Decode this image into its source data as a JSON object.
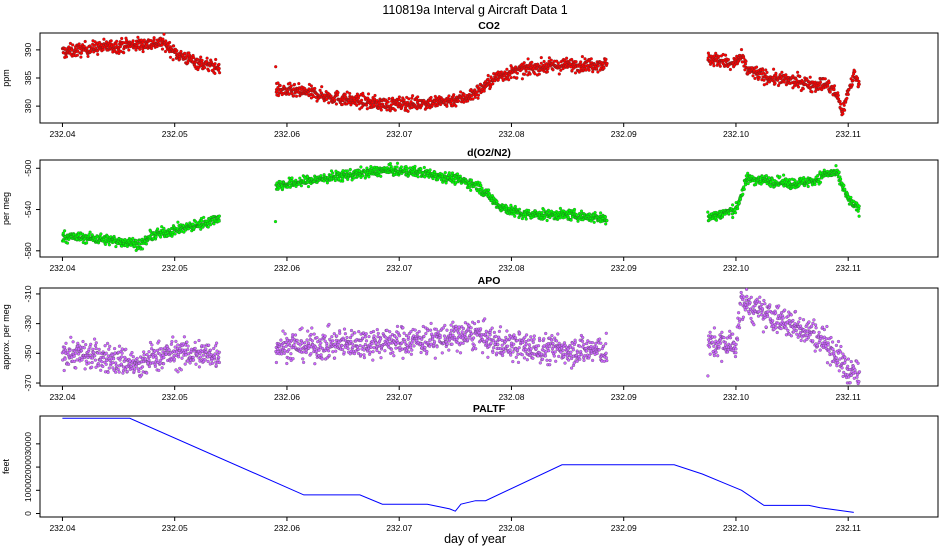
{
  "figure": {
    "title": "110819a   Interval g Aircraft Data 1",
    "xlabel": "day of year"
  },
  "chart_data": [
    {
      "type": "scatter",
      "title": "CO2",
      "ylabel": "ppm",
      "color": "#ff0000",
      "xlim": [
        232.038,
        232.118
      ],
      "ylim": [
        377,
        393
      ],
      "xticks": [
        "232.04",
        "232.05",
        "232.06",
        "232.07",
        "232.08",
        "232.09",
        "232.10",
        "232.11"
      ],
      "yticks": [
        380,
        385,
        390
      ],
      "anchors": [
        [
          [
            232.04,
            389.6
          ],
          [
            232.043,
            390.4
          ],
          [
            232.046,
            390.9
          ],
          [
            232.047,
            391.0
          ],
          [
            232.049,
            391.3
          ],
          [
            232.05,
            389.5
          ],
          [
            232.051,
            388.6
          ],
          [
            232.052,
            387.8
          ],
          [
            232.054,
            386.8
          ]
        ],
        [
          [
            232.059,
            382.9
          ],
          [
            232.062,
            382.4
          ],
          [
            232.064,
            381.6
          ],
          [
            232.066,
            381.0
          ],
          [
            232.069,
            380.3
          ],
          [
            232.072,
            380.6
          ],
          [
            232.074,
            380.8
          ],
          [
            232.076,
            381.6
          ],
          [
            232.077,
            382.6
          ],
          [
            232.078,
            384.2
          ],
          [
            232.079,
            385.5
          ],
          [
            232.082,
            386.9
          ],
          [
            232.085,
            387.3
          ],
          [
            232.0885,
            387.5
          ]
        ],
        [
          [
            232.0975,
            388.5
          ],
          [
            232.099,
            388.0
          ],
          [
            232.0995,
            387.2
          ],
          [
            232.1,
            387.9
          ],
          [
            232.1005,
            388.6
          ],
          [
            232.101,
            386.5
          ],
          [
            232.103,
            385.0
          ],
          [
            232.106,
            384.2
          ],
          [
            232.107,
            383.8
          ],
          [
            232.108,
            384.0
          ],
          [
            232.109,
            382.0
          ],
          [
            232.1095,
            379.0
          ],
          [
            232.11,
            382.6
          ],
          [
            232.1105,
            385.5
          ],
          [
            232.111,
            384.0
          ]
        ]
      ],
      "noise": 0.6
    },
    {
      "type": "scatter",
      "title": "d(O2/N2)",
      "ylabel": "per meg",
      "color": "#00ff00",
      "xlim": [
        232.038,
        232.118
      ],
      "ylim": [
        -586,
        -492
      ],
      "xticks": [
        "232.04",
        "232.05",
        "232.06",
        "232.07",
        "232.08",
        "232.09",
        "232.10",
        "232.11"
      ],
      "yticks": [
        -580,
        -540,
        -500
      ],
      "anchors": [
        [
          [
            232.04,
            -566
          ],
          [
            232.043,
            -568
          ],
          [
            232.046,
            -572
          ],
          [
            232.047,
            -574
          ],
          [
            232.048,
            -565
          ],
          [
            232.05,
            -560
          ],
          [
            232.052,
            -555
          ],
          [
            232.054,
            -548
          ]
        ],
        [
          [
            232.059,
            -517
          ],
          [
            232.062,
            -512
          ],
          [
            232.065,
            -507
          ],
          [
            232.068,
            -503
          ],
          [
            232.069,
            -502
          ],
          [
            232.072,
            -504
          ],
          [
            232.075,
            -510
          ],
          [
            232.077,
            -517
          ],
          [
            232.079,
            -537
          ],
          [
            232.081,
            -545
          ],
          [
            232.085,
            -545
          ],
          [
            232.0885,
            -549
          ]
        ],
        [
          [
            232.0975,
            -548
          ],
          [
            232.1,
            -540
          ],
          [
            232.101,
            -510
          ],
          [
            232.103,
            -512
          ],
          [
            232.105,
            -515
          ],
          [
            232.107,
            -512
          ],
          [
            232.108,
            -505
          ],
          [
            232.109,
            -505
          ],
          [
            232.11,
            -530
          ],
          [
            232.111,
            -541
          ]
        ]
      ],
      "noise": 2.5
    },
    {
      "type": "scatter",
      "title": "APO",
      "ylabel": "approx. per meg",
      "color": "#cc66ff",
      "xlim": [
        232.038,
        232.118
      ],
      "ylim": [
        -372,
        -306
      ],
      "xticks": [
        "232.04",
        "232.05",
        "232.06",
        "232.07",
        "232.08",
        "232.09",
        "232.10",
        "232.11"
      ],
      "yticks": [
        -370,
        -350,
        -330,
        -310
      ],
      "anchors": [
        [
          [
            232.04,
            -349
          ],
          [
            232.043,
            -352
          ],
          [
            232.046,
            -356
          ],
          [
            232.047,
            -360
          ],
          [
            232.048,
            -352
          ],
          [
            232.05,
            -350
          ],
          [
            232.054,
            -351
          ]
        ],
        [
          [
            232.059,
            -345
          ],
          [
            232.063,
            -345
          ],
          [
            232.066,
            -343
          ],
          [
            232.07,
            -342
          ],
          [
            232.074,
            -340
          ],
          [
            232.077,
            -337
          ],
          [
            232.078,
            -342
          ],
          [
            232.082,
            -347
          ],
          [
            232.0885,
            -348
          ]
        ],
        [
          [
            232.0975,
            -344
          ],
          [
            232.1,
            -344
          ],
          [
            232.1005,
            -315
          ],
          [
            232.102,
            -322
          ],
          [
            232.104,
            -328
          ],
          [
            232.106,
            -333
          ],
          [
            232.108,
            -342
          ],
          [
            232.109,
            -352
          ],
          [
            232.11,
            -362
          ],
          [
            232.111,
            -366
          ]
        ]
      ],
      "noise": 5
    },
    {
      "type": "line",
      "title": "PALTF",
      "ylabel": "feet",
      "color": "#0000ff",
      "xlim": [
        232.038,
        232.118
      ],
      "ylim": [
        -1500,
        42000
      ],
      "xticks": [
        "232.04",
        "232.05",
        "232.06",
        "232.07",
        "232.08",
        "232.09",
        "232.10",
        "232.11"
      ],
      "yticks": [
        0,
        10000,
        20000,
        30000
      ],
      "x": [
        232.04,
        232.046,
        232.0615,
        232.0665,
        232.0685,
        232.0725,
        232.0745,
        232.075,
        232.0755,
        232.0768,
        232.0777,
        232.0845,
        232.0945,
        232.097,
        232.099,
        232.1005,
        232.1025,
        232.1065,
        232.1075,
        232.1105
      ],
      "y": [
        41000,
        41000,
        8000,
        8000,
        4000,
        4000,
        2000,
        1000,
        4000,
        5500,
        5500,
        21000,
        21000,
        17000,
        13000,
        10000,
        3500,
        3500,
        2500,
        500
      ]
    }
  ]
}
